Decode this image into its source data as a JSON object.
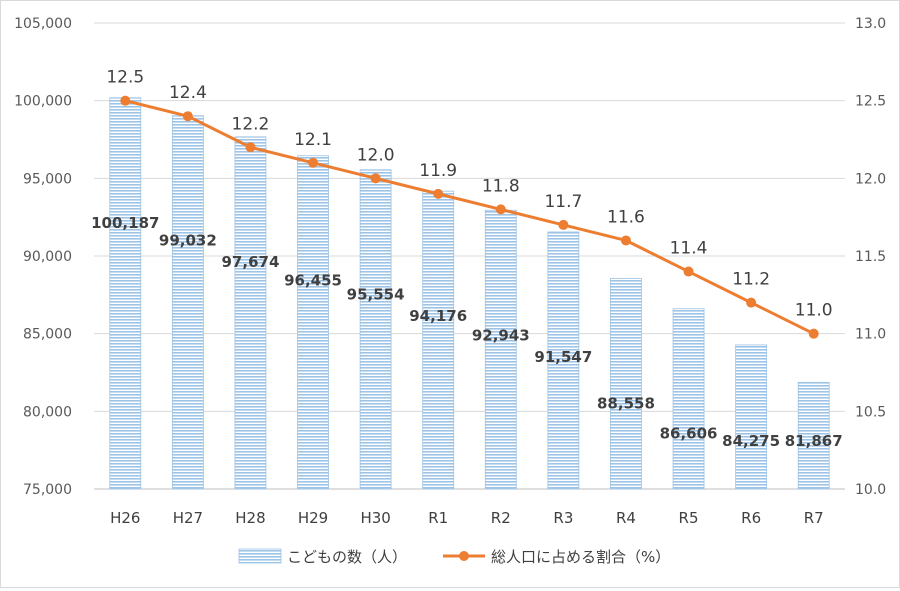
{
  "chart_data": {
    "type": "bar",
    "categories": [
      "H26",
      "H27",
      "H28",
      "H29",
      "H30",
      "R1",
      "R2",
      "R3",
      "R4",
      "R5",
      "R6",
      "R7"
    ],
    "series": [
      {
        "name": "こどもの数（人）",
        "type": "bar",
        "axis": "left",
        "values": [
          100187,
          99032,
          97674,
          96455,
          95554,
          94176,
          92943,
          91547,
          88558,
          86606,
          84275,
          81867
        ],
        "labels": [
          "100,187",
          "99,032",
          "97,674",
          "96,455",
          "95,554",
          "94,176",
          "92,943",
          "91,547",
          "88,558",
          "86,606",
          "84,275",
          "81,867"
        ],
        "color": "#9dc3e6"
      },
      {
        "name": "総人口に占める割合（%）",
        "type": "line",
        "axis": "right",
        "values": [
          12.5,
          12.4,
          12.2,
          12.1,
          12.0,
          11.9,
          11.8,
          11.7,
          11.6,
          11.4,
          11.2,
          11.0
        ],
        "labels": [
          "12.5",
          "12.4",
          "12.2",
          "12.1",
          "12.0",
          "11.9",
          "11.8",
          "11.7",
          "11.6",
          "11.4",
          "11.2",
          "11.0"
        ],
        "color": "#ed7d31"
      }
    ],
    "y_left": {
      "min": 75000,
      "max": 105000,
      "ticks": [
        75000,
        80000,
        85000,
        90000,
        95000,
        100000,
        105000
      ],
      "tick_labels": [
        "75,000",
        "80,000",
        "85,000",
        "90,000",
        "95,000",
        "100,000",
        "105,000"
      ]
    },
    "y_right": {
      "min": 10.0,
      "max": 13.0,
      "ticks": [
        10.0,
        10.5,
        11.0,
        11.5,
        12.0,
        12.5,
        13.0
      ],
      "tick_labels": [
        "10.0",
        "10.5",
        "11.0",
        "11.5",
        "12.0",
        "12.5",
        "13.0"
      ]
    },
    "grid": true,
    "legend": {
      "position": "bottom"
    }
  }
}
